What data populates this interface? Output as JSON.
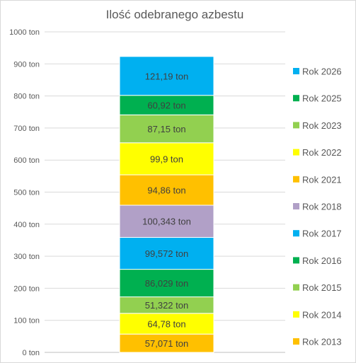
{
  "chart_data": {
    "type": "bar",
    "stacked": true,
    "title": "Ilość odebranego azbestu",
    "xlabel": "",
    "ylabel": "",
    "ylim": [
      0,
      1000
    ],
    "y_ticks": [
      "0 ton",
      "100 ton",
      "200 ton",
      "300 ton",
      "400 ton",
      "500 ton",
      "600 ton",
      "700 ton",
      "800 ton",
      "900 ton",
      "1000 ton"
    ],
    "grid": true,
    "legend_position": "right",
    "series": [
      {
        "name": "Rok 2013",
        "value": 57.071,
        "label": "57,071 ton",
        "color": "#FFC000"
      },
      {
        "name": "Rok 2014",
        "value": 64.78,
        "label": "64,78 ton",
        "color": "#FFFF00"
      },
      {
        "name": "Rok 2015",
        "value": 51.322,
        "label": "51,322 ton",
        "color": "#92D050"
      },
      {
        "name": "Rok 2016",
        "value": 86.029,
        "label": "86,029 ton",
        "color": "#00B050"
      },
      {
        "name": "Rok 2017",
        "value": 99.572,
        "label": "99,572 ton",
        "color": "#00B0F0"
      },
      {
        "name": "Rok 2018",
        "value": 100.343,
        "label": "100,343 ton",
        "color": "#B1A0C7"
      },
      {
        "name": "Rok 2021",
        "value": 94.86,
        "label": "94,86 ton",
        "color": "#FFC000"
      },
      {
        "name": "Rok 2022",
        "value": 99.9,
        "label": "99,9 ton",
        "color": "#FFFF00"
      },
      {
        "name": "Rok 2023",
        "value": 87.15,
        "label": "87,15 ton",
        "color": "#92D050"
      },
      {
        "name": "Rok 2025",
        "value": 60.92,
        "label": "60,92 ton",
        "color": "#00B050"
      },
      {
        "name": "Rok 2026",
        "value": 121.19,
        "label": "121,19 ton",
        "color": "#00B0F0"
      }
    ]
  }
}
